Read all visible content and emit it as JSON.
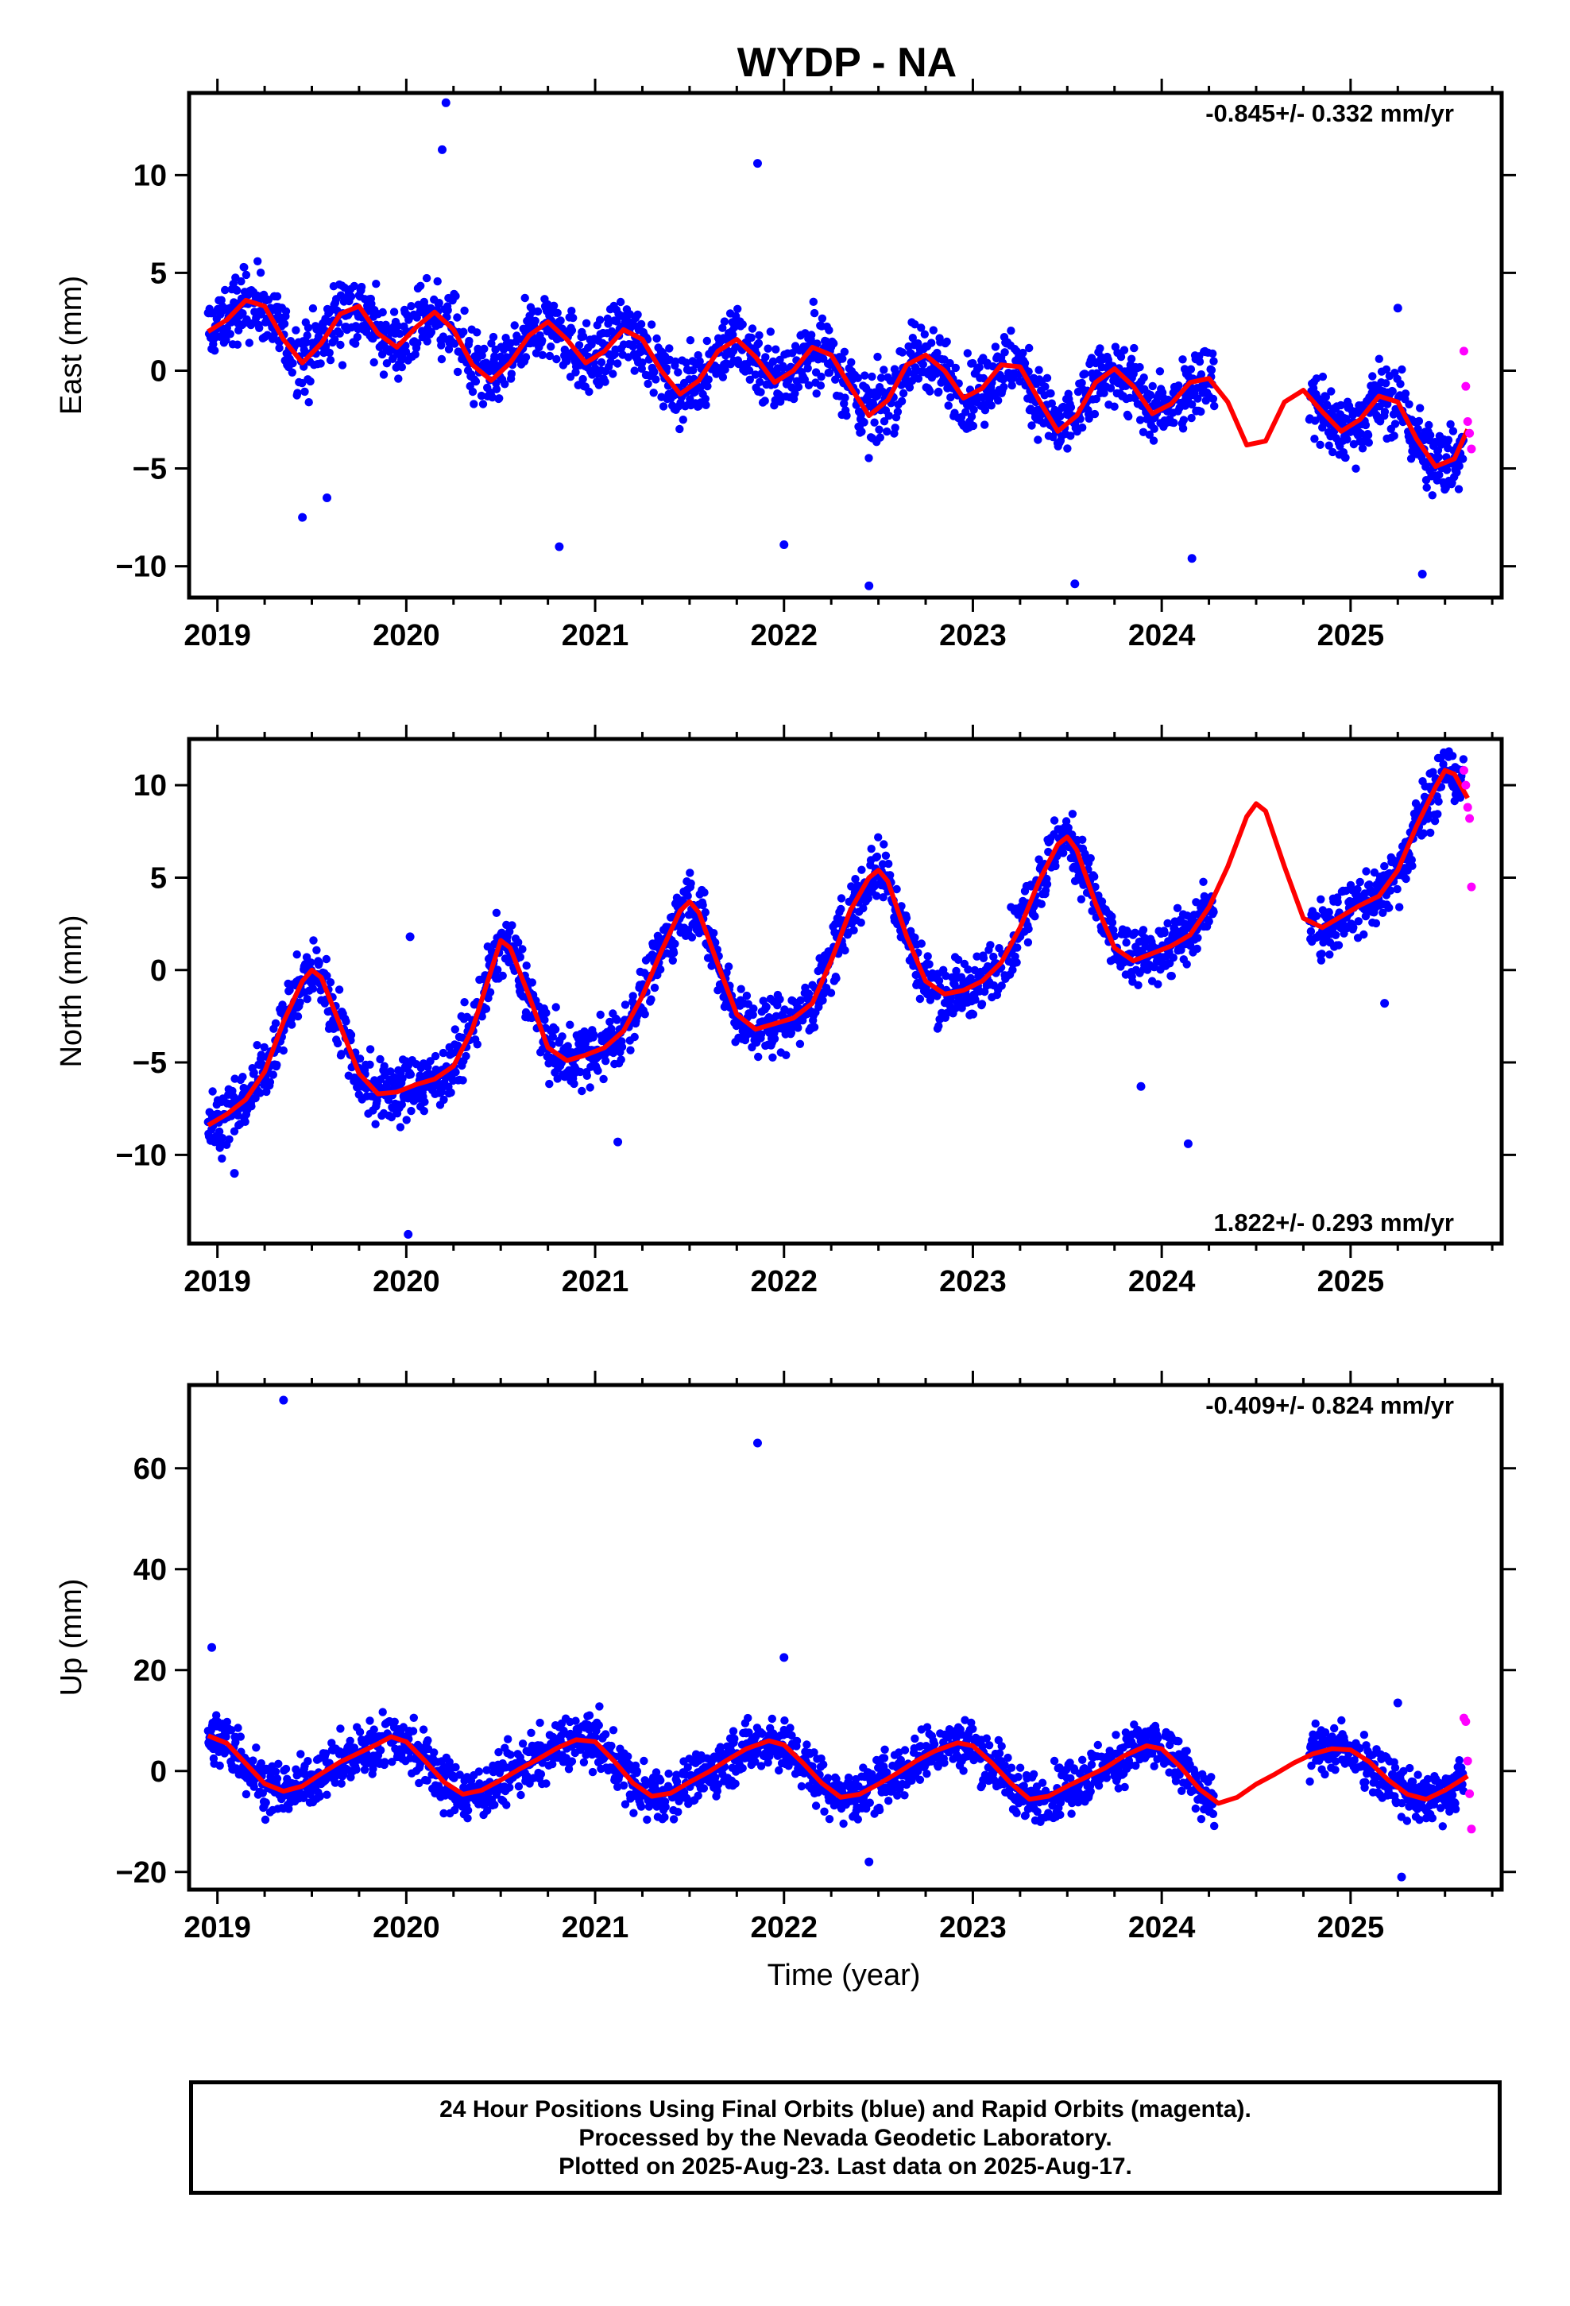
{
  "title": "WYDP - NA",
  "xlabel": "Time (year)",
  "footer": {
    "line1": "24 Hour Positions Using Final Orbits (blue) and Rapid Orbits (magenta).",
    "line2": "Processed by the Nevada Geodetic Laboratory.",
    "line3": "Plotted on 2025-Aug-23. Last data on 2025-Aug-17."
  },
  "colors": {
    "final": "#0000ff",
    "rapid": "#ff00ff",
    "model": "#ff0000"
  },
  "chart_data": [
    {
      "type": "scatter",
      "name": "east",
      "ylabel": "East (mm)",
      "rate_text": "-0.845+/- 0.332 mm/yr",
      "rate_position": "top-right",
      "xlim": [
        2018.85,
        2025.8
      ],
      "ylim": [
        -11.6,
        14.2
      ],
      "xticks": [
        2019,
        2020,
        2021,
        2022,
        2023,
        2024,
        2025
      ],
      "yticks": [
        -10,
        -5,
        0,
        5,
        10
      ],
      "model": {
        "x": [
          2018.95,
          2019.05,
          2019.15,
          2019.25,
          2019.35,
          2019.45,
          2019.55,
          2019.65,
          2019.75,
          2019.85,
          2019.95,
          2020.05,
          2020.15,
          2020.25,
          2020.35,
          2020.45,
          2020.55,
          2020.65,
          2020.75,
          2020.85,
          2020.95,
          2021.05,
          2021.15,
          2021.25,
          2021.35,
          2021.45,
          2021.55,
          2021.65,
          2021.75,
          2021.85,
          2021.95,
          2022.05,
          2022.15,
          2022.25,
          2022.35,
          2022.45,
          2022.55,
          2022.65,
          2022.75,
          2022.85,
          2022.95,
          2023.05,
          2023.15,
          2023.25,
          2023.35,
          2023.45,
          2023.55,
          2023.65,
          2023.75,
          2023.85,
          2023.95,
          2024.05,
          2024.15,
          2024.25,
          2024.35,
          2024.45,
          2024.55,
          2024.65,
          2024.75,
          2024.85,
          2024.95,
          2025.05,
          2025.15,
          2025.25,
          2025.35,
          2025.45,
          2025.55,
          2025.62
        ],
        "y": [
          2.0,
          2.6,
          3.6,
          3.3,
          1.6,
          0.4,
          1.4,
          2.9,
          3.3,
          1.9,
          1.2,
          2.2,
          3.0,
          2.1,
          0.3,
          -0.5,
          0.4,
          1.8,
          2.5,
          1.6,
          0.4,
          1.0,
          2.1,
          1.6,
          0.0,
          -1.2,
          -0.5,
          1.0,
          1.6,
          0.7,
          -0.6,
          0.0,
          1.2,
          0.8,
          -0.8,
          -2.3,
          -1.5,
          0.3,
          0.8,
          0.0,
          -1.4,
          -0.9,
          0.3,
          0.2,
          -1.5,
          -3.1,
          -2.3,
          -0.6,
          0.1,
          -0.8,
          -2.2,
          -1.7,
          -0.6,
          -0.4,
          -1.6,
          -3.8,
          -3.6,
          -1.6,
          -1.0,
          -2.1,
          -3.1,
          -2.5,
          -1.3,
          -1.6,
          -3.5,
          -4.9,
          -4.5,
          -3.0
        ]
      },
      "rapid": {
        "x": [
          2025.6,
          2025.61,
          2025.62,
          2025.63,
          2025.64
        ],
        "y": [
          1.0,
          -0.8,
          -2.6,
          -3.2,
          -4.0
        ]
      },
      "outliers": {
        "x": [
          2020.21,
          2020.19,
          2021.86,
          2019.45,
          2019.58,
          2020.81,
          2022.45,
          2024.16,
          2023.54,
          2025.38,
          2025.25,
          2022.0
        ],
        "y": [
          13.7,
          11.3,
          10.6,
          -7.5,
          -6.5,
          -9.0,
          -11.0,
          -9.6,
          -10.9,
          -10.4,
          3.2,
          -8.9
        ]
      }
    },
    {
      "type": "scatter",
      "name": "north",
      "ylabel": "North (mm)",
      "rate_text": "1.822+/- 0.293 mm/yr",
      "rate_position": "bottom-right",
      "xlim": [
        2018.85,
        2025.8
      ],
      "ylim": [
        -14.8,
        12.5
      ],
      "xticks": [
        2019,
        2020,
        2021,
        2022,
        2023,
        2024,
        2025
      ],
      "yticks": [
        -10,
        -5,
        0,
        5,
        10
      ],
      "model": {
        "x": [
          2018.95,
          2019.05,
          2019.15,
          2019.25,
          2019.35,
          2019.45,
          2019.5,
          2019.55,
          2019.65,
          2019.75,
          2019.85,
          2019.95,
          2020.05,
          2020.15,
          2020.25,
          2020.35,
          2020.45,
          2020.5,
          2020.55,
          2020.65,
          2020.75,
          2020.85,
          2020.95,
          2021.05,
          2021.15,
          2021.25,
          2021.35,
          2021.45,
          2021.5,
          2021.55,
          2021.65,
          2021.75,
          2021.85,
          2021.95,
          2022.05,
          2022.15,
          2022.25,
          2022.35,
          2022.45,
          2022.5,
          2022.55,
          2022.65,
          2022.75,
          2022.85,
          2022.95,
          2023.05,
          2023.15,
          2023.25,
          2023.35,
          2023.45,
          2023.5,
          2023.55,
          2023.65,
          2023.75,
          2023.85,
          2023.95,
          2024.05,
          2024.15,
          2024.25,
          2024.35,
          2024.45,
          2024.5,
          2024.55,
          2024.65,
          2024.75,
          2024.85,
          2024.95,
          2025.05,
          2025.15,
          2025.25,
          2025.35,
          2025.45,
          2025.5,
          2025.55,
          2025.62
        ],
        "y": [
          -8.4,
          -7.8,
          -7.0,
          -5.5,
          -2.8,
          -0.6,
          0.0,
          -0.4,
          -3.0,
          -5.6,
          -6.7,
          -6.6,
          -6.2,
          -5.9,
          -5.2,
          -3.2,
          0.0,
          1.6,
          1.2,
          -1.4,
          -4.2,
          -4.9,
          -4.6,
          -4.2,
          -3.3,
          -1.4,
          1.0,
          3.2,
          3.7,
          3.1,
          0.3,
          -2.4,
          -3.2,
          -2.9,
          -2.6,
          -1.8,
          0.5,
          3.2,
          5.0,
          5.4,
          4.8,
          1.8,
          -0.6,
          -1.3,
          -1.1,
          -0.6,
          0.4,
          2.3,
          4.8,
          6.8,
          7.2,
          6.5,
          3.6,
          1.2,
          0.5,
          0.9,
          1.3,
          1.9,
          3.4,
          5.6,
          8.3,
          9.0,
          8.6,
          5.6,
          2.8,
          2.3,
          2.9,
          3.5,
          4.0,
          5.4,
          7.8,
          9.9,
          10.8,
          10.6,
          9.3
        ]
      },
      "rapid": {
        "x": [
          2025.6,
          2025.61,
          2025.62,
          2025.63,
          2025.64
        ],
        "y": [
          10.8,
          10.0,
          8.8,
          8.2,
          4.5
        ]
      },
      "outliers": {
        "x": [
          2020.01,
          2021.12,
          2024.14,
          2023.89,
          2019.09,
          2020.02,
          2025.18
        ],
        "y": [
          -14.3,
          -9.3,
          -9.4,
          -6.3,
          -11.0,
          1.8,
          -1.8
        ]
      }
    },
    {
      "type": "scatter",
      "name": "up",
      "ylabel": "Up (mm)",
      "rate_text": "-0.409+/- 0.824 mm/yr",
      "rate_position": "top-right",
      "xlim": [
        2018.85,
        2025.8
      ],
      "ylim": [
        -23.5,
        76.5
      ],
      "xticks": [
        2019,
        2020,
        2021,
        2022,
        2023,
        2024,
        2025
      ],
      "yticks": [
        -20,
        0,
        20,
        40,
        60
      ],
      "model": {
        "x": [
          2018.95,
          2019.05,
          2019.15,
          2019.25,
          2019.35,
          2019.45,
          2019.55,
          2019.65,
          2019.75,
          2019.85,
          2019.92,
          2020.0,
          2020.1,
          2020.2,
          2020.3,
          2020.4,
          2020.5,
          2020.6,
          2020.7,
          2020.8,
          2020.9,
          2021.0,
          2021.1,
          2021.2,
          2021.3,
          2021.4,
          2021.5,
          2021.6,
          2021.7,
          2021.8,
          2021.92,
          2022.0,
          2022.1,
          2022.2,
          2022.3,
          2022.4,
          2022.5,
          2022.6,
          2022.7,
          2022.8,
          2022.92,
          2023.0,
          2023.1,
          2023.2,
          2023.3,
          2023.4,
          2023.5,
          2023.6,
          2023.7,
          2023.8,
          2023.92,
          2024.0,
          2024.1,
          2024.2,
          2024.3,
          2024.4,
          2024.5,
          2024.6,
          2024.7,
          2024.8,
          2024.9,
          2025.0,
          2025.1,
          2025.2,
          2025.3,
          2025.4,
          2025.5,
          2025.62
        ],
        "y": [
          7.0,
          5.5,
          1.5,
          -2.5,
          -4.0,
          -3.0,
          -0.5,
          1.8,
          3.6,
          5.4,
          6.8,
          5.8,
          2.0,
          -2.2,
          -4.6,
          -3.8,
          -1.8,
          0.4,
          2.4,
          4.6,
          6.2,
          5.8,
          2.0,
          -2.4,
          -5.0,
          -4.4,
          -2.2,
          -0.2,
          2.2,
          4.4,
          6.0,
          5.2,
          1.6,
          -2.4,
          -5.2,
          -4.6,
          -2.6,
          -0.4,
          2.0,
          4.0,
          5.6,
          5.0,
          1.6,
          -2.4,
          -5.6,
          -5.0,
          -3.0,
          -1.2,
          0.6,
          3.0,
          5.0,
          4.4,
          0.8,
          -3.6,
          -6.4,
          -5.2,
          -2.6,
          -0.6,
          1.6,
          3.4,
          4.4,
          4.2,
          1.8,
          -1.8,
          -4.6,
          -5.6,
          -3.8,
          -1.0
        ]
      },
      "rapid": {
        "x": [
          2025.6,
          2025.61,
          2025.62,
          2025.63,
          2025.64
        ],
        "y": [
          10.5,
          9.8,
          2.0,
          -4.5,
          -11.5
        ]
      },
      "outliers": {
        "x": [
          2019.35,
          2021.86,
          2018.97,
          2022.0,
          2025.27,
          2022.45,
          2025.25
        ],
        "y": [
          73.5,
          65.0,
          24.5,
          22.5,
          -21.0,
          -18.0,
          13.5
        ]
      }
    }
  ]
}
